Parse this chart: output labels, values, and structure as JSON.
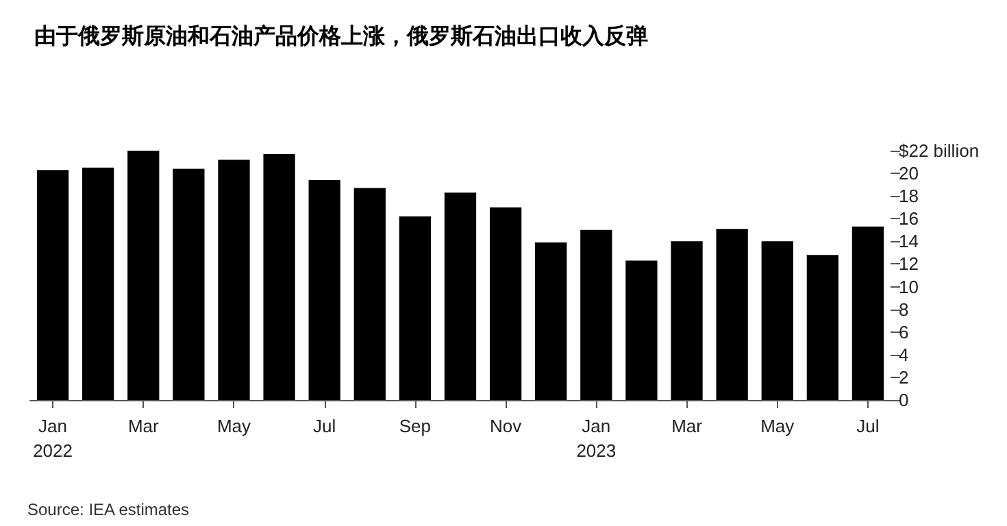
{
  "chart_data": {
    "type": "bar",
    "title": "由于俄罗斯原油和石油产品价格上涨，俄罗斯石油出口收入反弹",
    "categories": [
      "Jan\n2022",
      null,
      "Mar",
      null,
      "May",
      null,
      "Jul",
      null,
      "Sep",
      null,
      "Nov",
      null,
      "Jan\n2023",
      null,
      "Mar",
      null,
      "May",
      null,
      "Jul"
    ],
    "values": [
      20.3,
      20.5,
      22.0,
      20.4,
      21.2,
      21.7,
      19.4,
      18.7,
      16.2,
      18.3,
      17.0,
      13.9,
      15.0,
      12.3,
      14.0,
      15.1,
      14.0,
      12.8,
      15.3
    ],
    "color": "#000000",
    "ylim": [
      0,
      22
    ],
    "yticks": [
      0,
      2,
      4,
      6,
      8,
      10,
      12,
      14,
      16,
      18,
      20,
      {
        "value": 22,
        "label": "$22 billion"
      }
    ],
    "grid": false,
    "annotations": [
      "Source: IEA estimates"
    ]
  }
}
